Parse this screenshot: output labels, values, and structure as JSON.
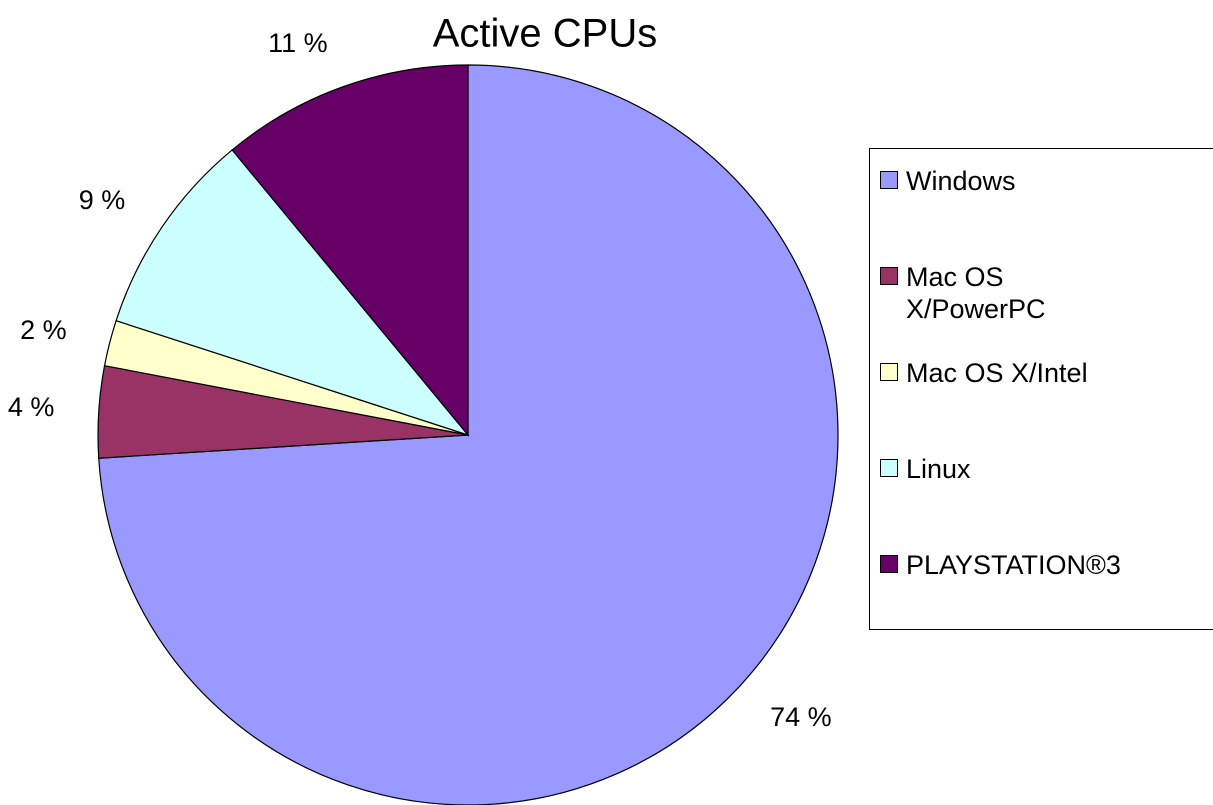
{
  "chart_data": {
    "type": "pie",
    "title": "Active CPUs",
    "categories": [
      "Windows",
      "Mac OS X/PowerPC",
      "Mac OS X/Intel",
      "Linux",
      "PLAYSTATION®3"
    ],
    "values": [
      74,
      4,
      2,
      9,
      11
    ],
    "value_labels": [
      "74 %",
      "4 %",
      "2 %",
      "9 %",
      "11 %"
    ],
    "colors": [
      "#9999ff",
      "#993366",
      "#ffffcc",
      "#ccffff",
      "#660066"
    ],
    "legend": "right"
  }
}
